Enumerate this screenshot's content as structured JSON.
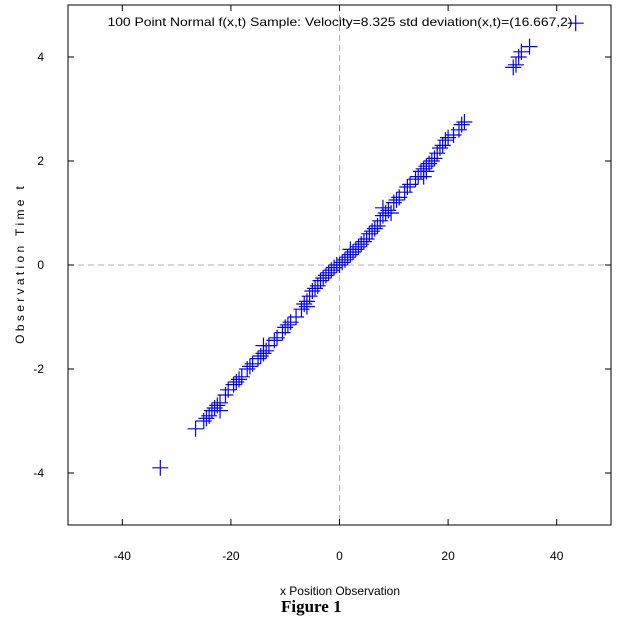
{
  "chart_data": {
    "type": "scatter",
    "title": "100 Point Normal f(x,t) Sample: Velocity=8.325 std deviation(x,t)=(16.667,2)",
    "xlabel": "x Position Observation",
    "ylabel": "O b s e r v a t i o n   T i m e   t",
    "xlim": [
      -50,
      50
    ],
    "ylim": [
      -5,
      5
    ],
    "xticks": [
      -40,
      -20,
      0,
      20,
      40
    ],
    "yticks": [
      -4,
      -2,
      0,
      2,
      4
    ],
    "grid": false,
    "reference_lines": {
      "x": 0,
      "y": 0
    },
    "marker": "plus",
    "color": "#0000ff",
    "points": [
      [
        -33,
        -3.9
      ],
      [
        -26.5,
        -3.15
      ],
      [
        -25,
        -3.0
      ],
      [
        -24,
        -2.9
      ],
      [
        -23.5,
        -2.8
      ],
      [
        -23,
        -2.75
      ],
      [
        -22.5,
        -2.7
      ],
      [
        -22,
        -2.65
      ],
      [
        -21,
        -2.5
      ],
      [
        -20.5,
        -2.4
      ],
      [
        -19.5,
        -2.3
      ],
      [
        -18.5,
        -2.2
      ],
      [
        -18,
        -2.15
      ],
      [
        -16.5,
        -1.95
      ],
      [
        -16,
        -1.9
      ],
      [
        -15,
        -1.8
      ],
      [
        -14.5,
        -1.75
      ],
      [
        -14,
        -1.7
      ],
      [
        -13.5,
        -1.65
      ],
      [
        -14,
        -1.55
      ],
      [
        -13,
        -1.55
      ],
      [
        -11.5,
        -1.4
      ],
      [
        -10.5,
        -1.3
      ],
      [
        -10,
        -1.2
      ],
      [
        -9.5,
        -1.15
      ],
      [
        -9,
        -1.1
      ],
      [
        -7,
        -0.85
      ],
      [
        -6.5,
        -0.75
      ],
      [
        -6,
        -0.7
      ],
      [
        -5.5,
        -0.6
      ],
      [
        -5,
        -0.5
      ],
      [
        -4.5,
        -0.45
      ],
      [
        -4,
        -0.4
      ],
      [
        -3.5,
        -0.3
      ],
      [
        -2.5,
        -0.2
      ],
      [
        -2,
        -0.15
      ],
      [
        -1.5,
        -0.1
      ],
      [
        -1,
        -0.05
      ],
      [
        -0.5,
        0.0
      ],
      [
        0,
        0.0
      ],
      [
        0.5,
        0.05
      ],
      [
        1,
        0.1
      ],
      [
        1.5,
        0.15
      ],
      [
        2,
        0.2
      ],
      [
        2.5,
        0.25
      ],
      [
        3,
        0.3
      ],
      [
        3.5,
        0.35
      ],
      [
        4,
        0.4
      ],
      [
        5,
        0.5
      ],
      [
        5.5,
        0.6
      ],
      [
        6,
        0.65
      ],
      [
        7,
        0.75
      ],
      [
        7.5,
        0.85
      ],
      [
        8,
        0.95
      ],
      [
        8.5,
        1.0
      ],
      [
        9,
        1.05
      ],
      [
        9.5,
        1.0
      ],
      [
        10,
        1.2
      ],
      [
        11,
        1.3
      ],
      [
        12,
        1.4
      ],
      [
        13,
        1.55
      ],
      [
        14,
        1.65
      ],
      [
        15,
        1.8
      ],
      [
        15.5,
        1.85
      ],
      [
        16,
        1.9
      ],
      [
        16.5,
        1.95
      ],
      [
        15.5,
        1.7
      ],
      [
        16,
        1.8
      ],
      [
        17,
        2.0
      ],
      [
        18,
        2.15
      ],
      [
        18.5,
        2.25
      ],
      [
        19,
        2.3
      ],
      [
        19.5,
        2.4
      ],
      [
        20,
        2.45
      ],
      [
        21,
        2.5
      ],
      [
        22,
        2.6
      ],
      [
        22.5,
        2.7
      ],
      [
        23,
        2.75
      ],
      [
        32,
        3.8
      ],
      [
        32.5,
        3.85
      ],
      [
        33,
        4.0
      ],
      [
        33.5,
        4.1
      ],
      [
        35,
        4.2
      ],
      [
        43.5,
        4.65
      ],
      [
        -12,
        -1.45
      ],
      [
        -8,
        -1.0
      ],
      [
        -3,
        -0.25
      ],
      [
        4.5,
        0.45
      ],
      [
        6.5,
        0.7
      ],
      [
        10.5,
        1.25
      ],
      [
        12.5,
        1.5
      ],
      [
        14.5,
        1.7
      ],
      [
        17.5,
        2.05
      ],
      [
        -17,
        -2.0
      ],
      [
        -24.5,
        -2.95
      ],
      [
        -22,
        -2.8
      ],
      [
        -19,
        -2.25
      ],
      [
        8,
        1.1
      ],
      [
        -6,
        -0.8
      ],
      [
        2,
        0.3
      ]
    ]
  },
  "figure": {
    "caption": "Figure 1"
  }
}
